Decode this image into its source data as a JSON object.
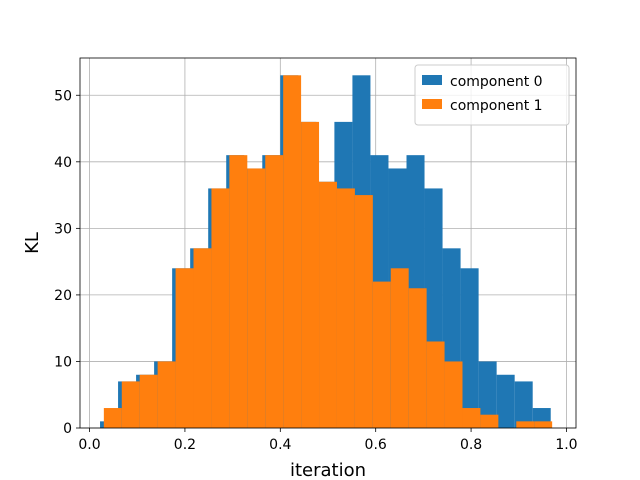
{
  "chart_data": {
    "type": "histogram",
    "xlabel": "iteration",
    "ylabel": "KL",
    "xlim": [
      -0.02,
      1.02
    ],
    "ylim": [
      0,
      55.6
    ],
    "xticks": [
      0.0,
      0.2,
      0.4,
      0.6,
      0.8,
      1.0
    ],
    "xtick_labels": [
      "0.0",
      "0.2",
      "0.4",
      "0.6",
      "0.8",
      "1.0"
    ],
    "yticks": [
      0,
      10,
      20,
      30,
      40,
      50
    ],
    "ytick_labels": [
      "0",
      "10",
      "20",
      "30",
      "40",
      "50"
    ],
    "grid": true,
    "legend_position": "top-right",
    "series": [
      {
        "name": "component 0",
        "color": "#1f77b4",
        "bin_edges": [
          0.022,
          0.0598,
          0.0976,
          0.1354,
          0.1732,
          0.211,
          0.2488,
          0.2866,
          0.3244,
          0.3622,
          0.4,
          0.4378,
          0.4756,
          0.5134,
          0.5512,
          0.589,
          0.6268,
          0.6646,
          0.7024,
          0.7402,
          0.778,
          0.8158,
          0.8536,
          0.8914,
          0.9292,
          0.967
        ],
        "counts": [
          1,
          7,
          8,
          10,
          24,
          27,
          36,
          41,
          39,
          41,
          53,
          46,
          37,
          46,
          53,
          41,
          39,
          41,
          36,
          27,
          24,
          10,
          8,
          7,
          3
        ]
      },
      {
        "name": "component 1",
        "color": "#ff7f0e",
        "bin_edges": [
          0.03,
          0.0676,
          0.1052,
          0.1428,
          0.1804,
          0.218,
          0.2556,
          0.2932,
          0.3308,
          0.3684,
          0.406,
          0.4436,
          0.4812,
          0.5188,
          0.5564,
          0.594,
          0.6316,
          0.6692,
          0.7068,
          0.7444,
          0.782,
          0.8196,
          0.8572,
          0.8948,
          0.9324,
          0.97
        ],
        "counts": [
          3,
          7,
          8,
          10,
          24,
          27,
          36,
          41,
          39,
          41,
          53,
          46,
          37,
          36,
          35,
          22,
          24,
          21,
          13,
          10,
          3,
          2,
          0,
          1,
          1
        ]
      }
    ]
  }
}
